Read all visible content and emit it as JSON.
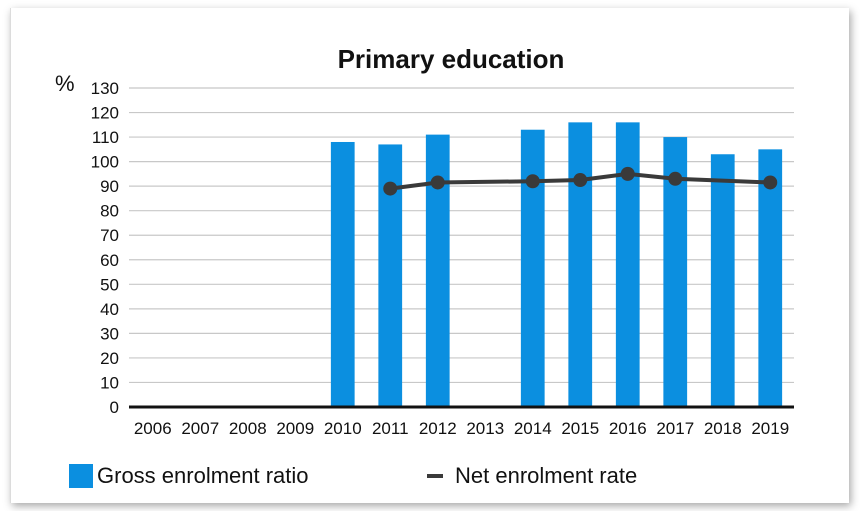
{
  "chart_data": {
    "type": "bar",
    "title": "Primary education",
    "ylabel": "%",
    "xlabel": "",
    "ylim": [
      0,
      130
    ],
    "yticks": [
      0,
      10,
      20,
      30,
      40,
      50,
      60,
      70,
      80,
      90,
      100,
      110,
      120,
      130
    ],
    "categories": [
      "2006",
      "2007",
      "2008",
      "2009",
      "2010",
      "2011",
      "2012",
      "2013",
      "2014",
      "2015",
      "2016",
      "2017",
      "2018",
      "2019"
    ],
    "series": [
      {
        "name": "Gross enrolment ratio",
        "kind": "bar",
        "color": "#0b8fe0",
        "values": [
          null,
          null,
          null,
          null,
          108,
          107,
          111,
          null,
          113,
          116,
          116,
          110,
          103,
          105
        ]
      },
      {
        "name": "Net enrolment rate",
        "kind": "line",
        "color": "#3a3a3a",
        "values": [
          null,
          null,
          null,
          null,
          null,
          89,
          91.5,
          null,
          92,
          92.5,
          95,
          93,
          null,
          91.5
        ]
      }
    ],
    "grid": true,
    "legend_position": "bottom-left"
  }
}
